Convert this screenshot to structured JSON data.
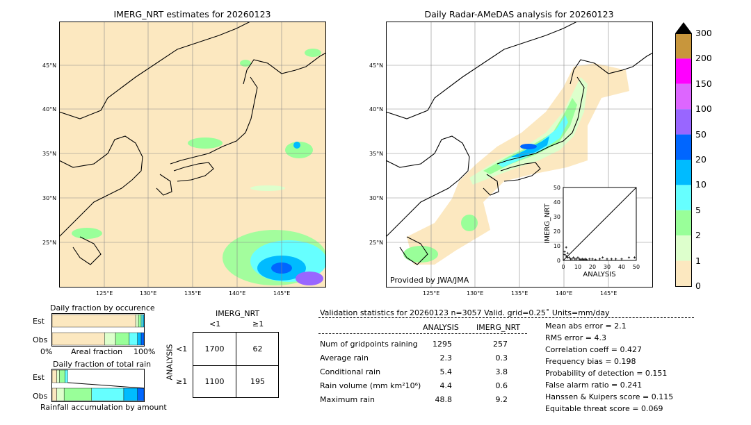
{
  "left_map": {
    "title": "IMERG_NRT estimates for 20260123",
    "lat_labels": [
      "45°N",
      "40°N",
      "35°N",
      "30°N",
      "25°N"
    ],
    "lon_labels": [
      "125°E",
      "130°E",
      "135°E",
      "140°E",
      "145°E"
    ]
  },
  "right_map": {
    "title": "Daily Radar-AMeDAS analysis for 20260123",
    "lat_labels": [
      "45°N",
      "40°N",
      "35°N",
      "30°N",
      "25°N"
    ],
    "lon_labels": [
      "125°E",
      "130°E",
      "135°E",
      "140°E",
      "145°E"
    ],
    "credit": "Provided by JWA/JMA"
  },
  "colorbar": {
    "levels": [
      "300",
      "200",
      "150",
      "100",
      "50",
      "20",
      "10",
      "5",
      "2",
      "1",
      "0"
    ],
    "colors": [
      "#c8963c",
      "#ff00ff",
      "#dd66ff",
      "#9966ff",
      "#0066ff",
      "#00bbff",
      "#66ffff",
      "#99ff99",
      "#ddffcc",
      "#fce8c0"
    ]
  },
  "chart_data": [
    {
      "type": "scatter",
      "xlabel": "ANALYSIS",
      "ylabel": "IMERG_NRT",
      "xlim": [
        0,
        50
      ],
      "ylim": [
        0,
        50
      ],
      "xticks": [
        "0",
        "10",
        "20",
        "30",
        "40",
        "50"
      ],
      "yticks": [
        "0",
        "10",
        "20",
        "30",
        "40",
        "50"
      ],
      "points": [
        [
          1,
          6
        ],
        [
          2,
          3
        ],
        [
          3,
          2
        ],
        [
          4,
          2
        ],
        [
          5,
          1
        ],
        [
          6,
          1
        ],
        [
          7,
          2
        ],
        [
          8,
          1
        ],
        [
          9,
          1
        ],
        [
          10,
          2
        ],
        [
          11,
          1
        ],
        [
          12,
          0.5
        ],
        [
          13,
          1
        ],
        [
          14,
          0.5
        ],
        [
          15,
          1
        ],
        [
          16,
          0.5
        ],
        [
          18,
          1
        ],
        [
          20,
          1
        ],
        [
          22,
          0.5
        ],
        [
          25,
          1
        ],
        [
          27,
          2
        ],
        [
          30,
          1
        ],
        [
          33,
          1
        ],
        [
          36,
          1
        ],
        [
          40,
          1
        ],
        [
          45,
          2
        ],
        [
          48.8,
          2
        ],
        [
          2,
          9
        ],
        [
          1,
          4
        ],
        [
          3,
          5
        ]
      ]
    },
    {
      "type": "bar",
      "title": "Daily fraction by occurence",
      "categories": [
        "Est",
        "Obs"
      ],
      "xlabel": "Areal fraction",
      "x_ticks": [
        "0%",
        "100%"
      ],
      "segments": {
        "Est": [
          {
            "color": "#fce8c0",
            "value": 0.91
          },
          {
            "color": "#ddffcc",
            "value": 0.03
          },
          {
            "color": "#99ff99",
            "value": 0.03
          },
          {
            "color": "#66ffff",
            "value": 0.02
          },
          {
            "color": "#00bbff",
            "value": 0.01
          }
        ],
        "Obs": [
          {
            "color": "#fce8c0",
            "value": 0.57
          },
          {
            "color": "#ddffcc",
            "value": 0.12
          },
          {
            "color": "#99ff99",
            "value": 0.15
          },
          {
            "color": "#66ffff",
            "value": 0.09
          },
          {
            "color": "#00bbff",
            "value": 0.04
          },
          {
            "color": "#0066ff",
            "value": 0.03
          }
        ]
      }
    },
    {
      "type": "bar",
      "title": "Daily fraction of total rain",
      "categories": [
        "Est",
        "Obs"
      ],
      "xlabel": "Rainfall accumulation by amount",
      "segments": {
        "Est": [
          {
            "color": "#fce8c0",
            "value": 0.05
          },
          {
            "color": "#ddffcc",
            "value": 0.03
          },
          {
            "color": "#99ff99",
            "value": 0.06
          },
          {
            "color": "#66ffff",
            "value": 0.03
          }
        ],
        "Obs": [
          {
            "color": "#fce8c0",
            "value": 0.05
          },
          {
            "color": "#ddffcc",
            "value": 0.08
          },
          {
            "color": "#99ff99",
            "value": 0.3
          },
          {
            "color": "#66ffff",
            "value": 0.35
          },
          {
            "color": "#00bbff",
            "value": 0.15
          },
          {
            "color": "#0066ff",
            "value": 0.07
          }
        ]
      }
    },
    {
      "type": "table",
      "title": "IMERG_NRT",
      "col_labels": [
        "<1",
        "≥1"
      ],
      "row_axis": "ANALYSIS",
      "row_labels": [
        "<1",
        "≥1"
      ],
      "cells": [
        [
          "1700",
          "62"
        ],
        [
          "1100",
          "195"
        ]
      ]
    }
  ],
  "validation": {
    "header": "Validation statistics for 20260123  n=3057 Valid. grid=0.25˚ Units=mm/day",
    "col_analysis": "ANALYSIS",
    "col_imerg": "IMERG_NRT",
    "rows": [
      {
        "label": "Num of gridpoints raining",
        "analysis": "1295",
        "imerg": "257"
      },
      {
        "label": "Average rain",
        "analysis": "2.3",
        "imerg": "0.3"
      },
      {
        "label": "Conditional rain",
        "analysis": "5.4",
        "imerg": "3.8"
      },
      {
        "label": "Rain volume (mm km²10⁶)",
        "analysis": "4.4",
        "imerg": "0.6"
      },
      {
        "label": "Maximum rain",
        "analysis": "48.8",
        "imerg": "9.2"
      }
    ],
    "scores": [
      "Mean abs error =    2.1",
      "RMS error =    4.3",
      "Correlation coeff =  0.427",
      "Frequency bias =  0.198",
      "Probability of detection =  0.151",
      "False alarm ratio =  0.241",
      "Hanssen & Kuipers score =  0.115",
      "Equitable threat score =  0.069"
    ]
  }
}
